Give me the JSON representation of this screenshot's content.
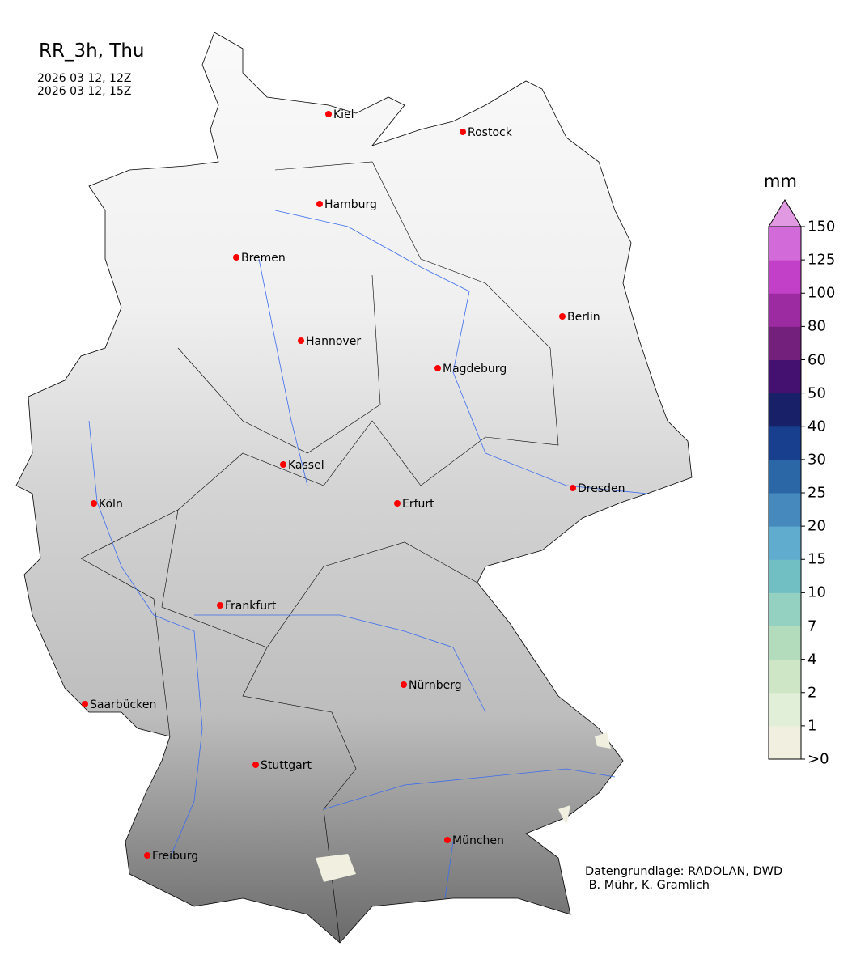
{
  "header": {
    "title": "RR_3h, Thu",
    "valid_from": "2026 03 12, 12Z",
    "valid_to": "2026 03 12, 15Z"
  },
  "map": {
    "region": "Germany",
    "cities": [
      "Kiel",
      "Rostock",
      "Hamburg",
      "Bremen",
      "Berlin",
      "Hannover",
      "Magdeburg",
      "Kassel",
      "Köln",
      "Erfurt",
      "Dresden",
      "Frankfurt",
      "Nürnberg",
      "Saarbücken",
      "Stuttgart",
      "München",
      "Freiburg"
    ],
    "city_marker_color": "#ff0000",
    "river_color": "#3b6cf0"
  },
  "colorbar": {
    "unit": "mm",
    "ticks": [
      ">0",
      "1",
      "2",
      "4",
      "7",
      "10",
      "15",
      "20",
      "25",
      "30",
      "40",
      "50",
      "60",
      "80",
      "100",
      "125",
      "150"
    ],
    "colors": [
      "#f0efe0",
      "#e2efd8",
      "#cfe6c6",
      "#b3dcbc",
      "#95d1c0",
      "#72bfc3",
      "#5faccf",
      "#4689bd",
      "#2b66a7",
      "#183f8d",
      "#182167",
      "#451170",
      "#73207c",
      "#9c2aa0",
      "#c23fc8",
      "#d36ad9",
      "#e19ae2"
    ]
  },
  "credit": {
    "line1": "Datengrundlage: RADOLAN, DWD",
    "line2": " B. Mühr, K. Gramlich"
  }
}
